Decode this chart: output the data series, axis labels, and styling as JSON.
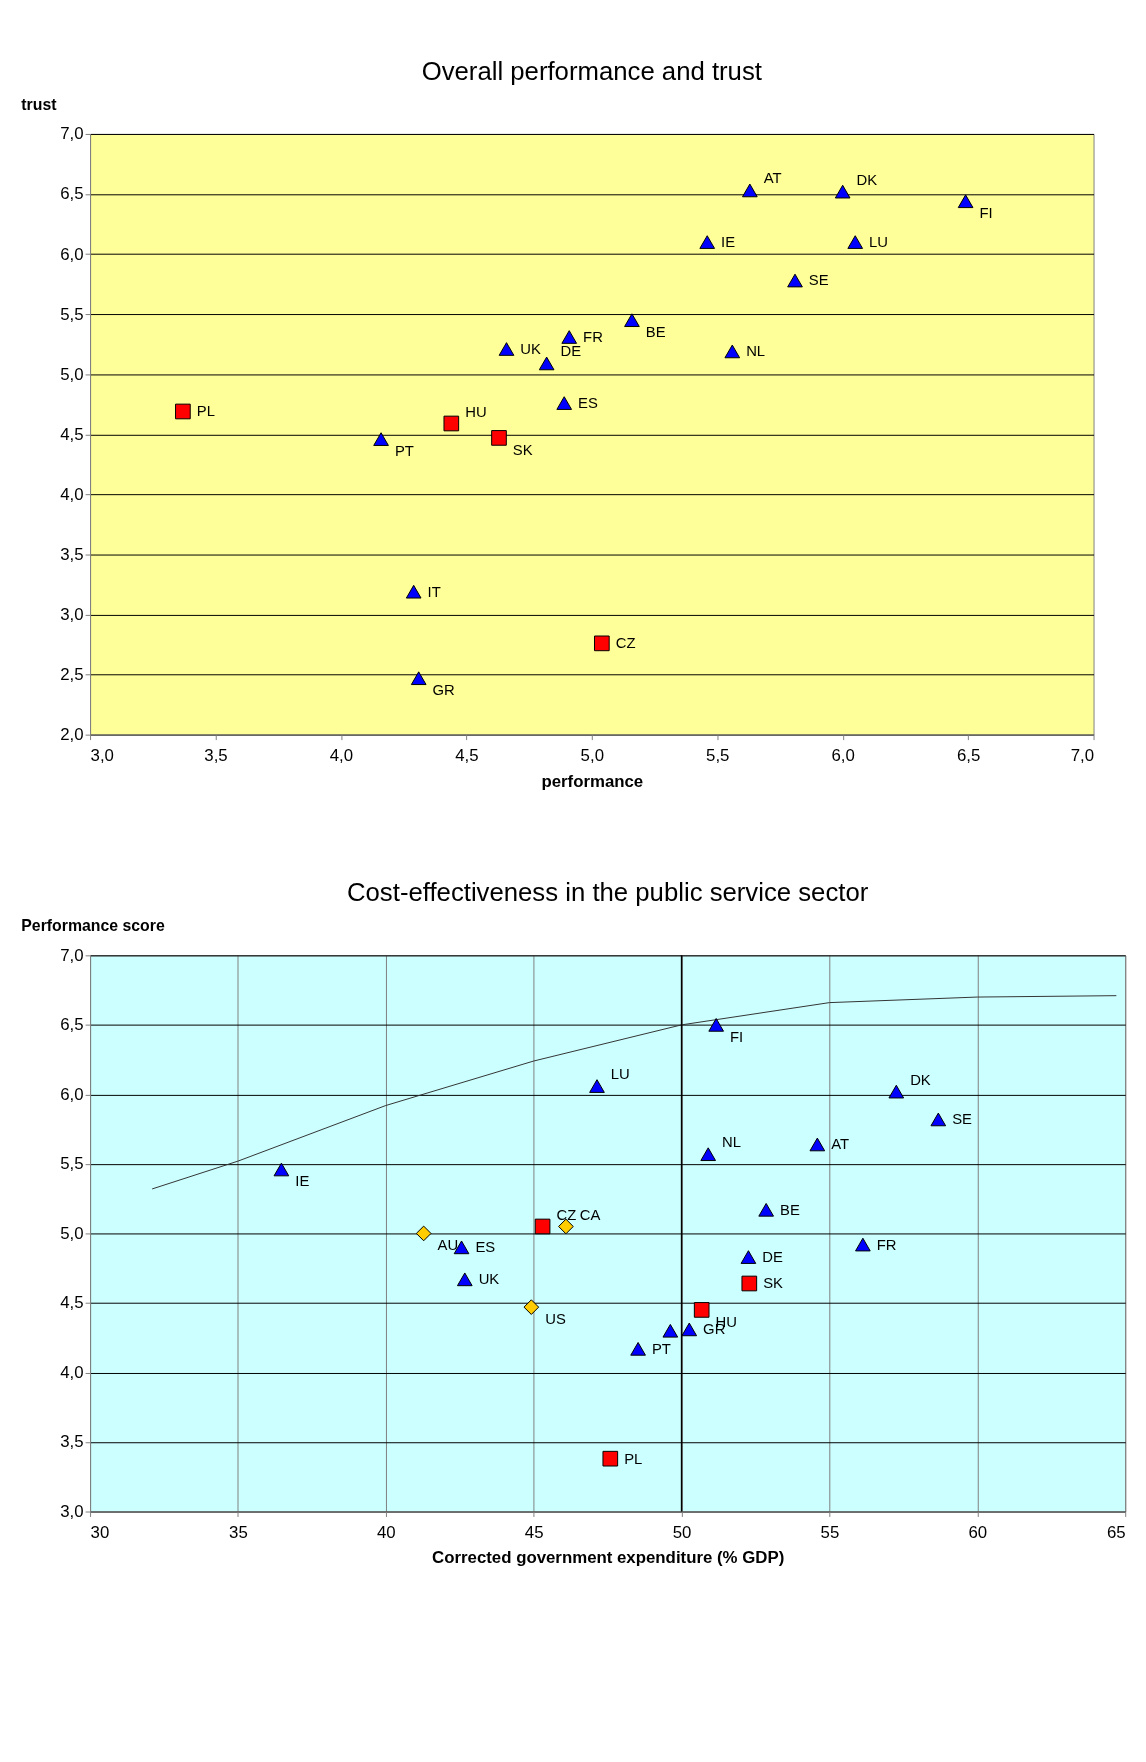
{
  "chart_data": [
    {
      "type": "scatter",
      "title": "Overall performance and trust",
      "xlabel": "performance",
      "ylabel": "trust",
      "xlim": [
        3,
        7
      ],
      "xticks": [
        {
          "value": 3,
          "label": "3,0"
        },
        {
          "value": 3.5,
          "label": "3,5"
        },
        {
          "value": 4,
          "label": "4,0"
        },
        {
          "value": 4.5,
          "label": "4,5"
        },
        {
          "value": 5,
          "label": "5,0"
        },
        {
          "value": 5.5,
          "label": "5,5"
        },
        {
          "value": 6,
          "label": "6,0"
        },
        {
          "value": 6.5,
          "label": "6,5"
        },
        {
          "value": 7,
          "label": "7,0"
        }
      ],
      "ylim": [
        2,
        7
      ],
      "yticks": [
        {
          "value": 2,
          "label": "2,0"
        },
        {
          "value": 2.5,
          "label": "2,5"
        },
        {
          "value": 3,
          "label": "3,0"
        },
        {
          "value": 3.5,
          "label": "3,5"
        },
        {
          "value": 4,
          "label": "4,0"
        },
        {
          "value": 4.5,
          "label": "4,5"
        },
        {
          "value": 5,
          "label": "5,0"
        },
        {
          "value": 5.5,
          "label": "5,5"
        },
        {
          "value": 6,
          "label": "6,0"
        },
        {
          "value": 6.5,
          "label": "6,5"
        },
        {
          "value": 7,
          "label": "7,0"
        }
      ],
      "grid": "y",
      "series": [
        {
          "marker": "triangle",
          "color": "#0000ff",
          "x": [
            5.63,
            6.0,
            6.49,
            5.46,
            6.05,
            5.81,
            5.16,
            4.91,
            4.66,
            5.56,
            4.82,
            4.89,
            4.16,
            4.29,
            4.31
          ],
          "values": [
            6.53,
            6.52,
            6.44,
            6.1,
            6.1,
            5.78,
            5.45,
            5.31,
            5.21,
            5.19,
            5.09,
            4.76,
            4.46,
            3.19,
            2.47
          ]
        },
        {
          "marker": "square",
          "color": "#ff0000",
          "x": [
            3.37,
            4.44,
            4.63,
            5.04
          ],
          "values": [
            4.69,
            4.59,
            4.47,
            2.76
          ]
        }
      ],
      "annotations": [
        {
          "text": "AT",
          "x": 5.63,
          "y": 6.53
        },
        {
          "text": "DK",
          "x": 6.0,
          "y": 6.52
        },
        {
          "text": "FI",
          "x": 6.49,
          "y": 6.44
        },
        {
          "text": "IE",
          "x": 5.46,
          "y": 6.1
        },
        {
          "text": "LU",
          "x": 6.05,
          "y": 6.1
        },
        {
          "text": "SE",
          "x": 5.81,
          "y": 5.78
        },
        {
          "text": "BE",
          "x": 5.16,
          "y": 5.45
        },
        {
          "text": "FR",
          "x": 4.91,
          "y": 5.31
        },
        {
          "text": "UK",
          "x": 4.66,
          "y": 5.21
        },
        {
          "text": "NL",
          "x": 5.56,
          "y": 5.19
        },
        {
          "text": "DE",
          "x": 4.82,
          "y": 5.09
        },
        {
          "text": "ES",
          "x": 4.89,
          "y": 4.76
        },
        {
          "text": "PT",
          "x": 4.16,
          "y": 4.46
        },
        {
          "text": "IT",
          "x": 4.29,
          "y": 3.19
        },
        {
          "text": "GR",
          "x": 4.31,
          "y": 2.47
        },
        {
          "text": "PL",
          "x": 3.37,
          "y": 4.69
        },
        {
          "text": "HU",
          "x": 4.44,
          "y": 4.59
        },
        {
          "text": "SK",
          "x": 4.63,
          "y": 4.47
        },
        {
          "text": "CZ",
          "x": 5.04,
          "y": 2.76
        }
      ]
    },
    {
      "type": "scatter",
      "title": "Cost-effectiveness in the public service sector",
      "xlabel": "Corrected government expenditure (% GDP)",
      "ylabel": "Performance score",
      "xlim": [
        30,
        65
      ],
      "xticks": [
        30,
        35,
        40,
        45,
        50,
        55,
        60,
        65
      ],
      "ylim": [
        3,
        7
      ],
      "yticks": [
        {
          "value": 3,
          "label": "3,0"
        },
        {
          "value": 3.5,
          "label": "3,5"
        },
        {
          "value": 4,
          "label": "4,0"
        },
        {
          "value": 4.5,
          "label": "4,5"
        },
        {
          "value": 5,
          "label": "5,0"
        },
        {
          "value": 5.5,
          "label": "5,5"
        },
        {
          "value": 6,
          "label": "6,0"
        },
        {
          "value": 6.5,
          "label": "6,5"
        },
        {
          "value": 7,
          "label": "7,0"
        }
      ],
      "grid": true,
      "ref_lines": [
        {
          "axis": "x",
          "value": 50,
          "color": "#000000"
        }
      ],
      "series": [
        {
          "type": "line",
          "color": "#333333",
          "marker": "none",
          "line_style": "solid",
          "x": [
            32.1,
            35,
            40,
            45,
            50,
            55,
            60,
            64.7
          ],
          "values": [
            5.32,
            5.52,
            5.92,
            6.24,
            6.5,
            6.66,
            6.7,
            6.71
          ]
        },
        {
          "marker": "triangle",
          "color": "#0000ff",
          "x": [
            51.17,
            47.14,
            57.26,
            58.68,
            54.59,
            50.9,
            36.47,
            52.86,
            56.13,
            52.26,
            42.56,
            42.67,
            50.26,
            49.62,
            48.53
          ],
          "values": [
            6.5,
            6.06,
            6.02,
            5.82,
            5.64,
            5.57,
            5.46,
            5.17,
            4.92,
            4.83,
            4.9,
            4.67,
            4.31,
            4.3,
            4.17
          ]
        },
        {
          "marker": "diamond",
          "color": "#ffcc00",
          "x": [
            41.28,
            46.09,
            44.92
          ],
          "values": [
            5.0,
            5.05,
            4.47
          ]
        },
        {
          "marker": "square",
          "color": "#ff0000",
          "x": [
            45.3,
            50.68,
            52.29,
            47.59
          ],
          "values": [
            5.05,
            4.45,
            4.64,
            3.38
          ]
        }
      ],
      "annotations": [
        {
          "text": "FI",
          "x": 51.17,
          "y": 6.5
        },
        {
          "text": "LU",
          "x": 47.14,
          "y": 6.06
        },
        {
          "text": "DK",
          "x": 57.26,
          "y": 6.02
        },
        {
          "text": "SE",
          "x": 58.68,
          "y": 5.82
        },
        {
          "text": "AT",
          "x": 54.59,
          "y": 5.64
        },
        {
          "text": "NL",
          "x": 50.9,
          "y": 5.57
        },
        {
          "text": "IE",
          "x": 36.47,
          "y": 5.46
        },
        {
          "text": "BE",
          "x": 52.86,
          "y": 5.17
        },
        {
          "text": "FR",
          "x": 56.13,
          "y": 4.92
        },
        {
          "text": "DE",
          "x": 52.26,
          "y": 4.83
        },
        {
          "text": "ES",
          "x": 42.56,
          "y": 4.9
        },
        {
          "text": "UK",
          "x": 42.67,
          "y": 4.67
        },
        {
          "text": "GR",
          "x": 50.26,
          "y": 4.31
        },
        {
          "text": "PT",
          "x": 48.53,
          "y": 4.17
        },
        {
          "text": "AU",
          "x": 41.28,
          "y": 5.0
        },
        {
          "text": "CA",
          "x": 46.09,
          "y": 5.05
        },
        {
          "text": "US",
          "x": 44.92,
          "y": 4.47
        },
        {
          "text": "CZ",
          "x": 45.3,
          "y": 5.05
        },
        {
          "text": "HU",
          "x": 50.68,
          "y": 4.45
        },
        {
          "text": "SK",
          "x": 52.29,
          "y": 4.64
        },
        {
          "text": "PL",
          "x": 47.59,
          "y": 3.38
        }
      ]
    }
  ]
}
